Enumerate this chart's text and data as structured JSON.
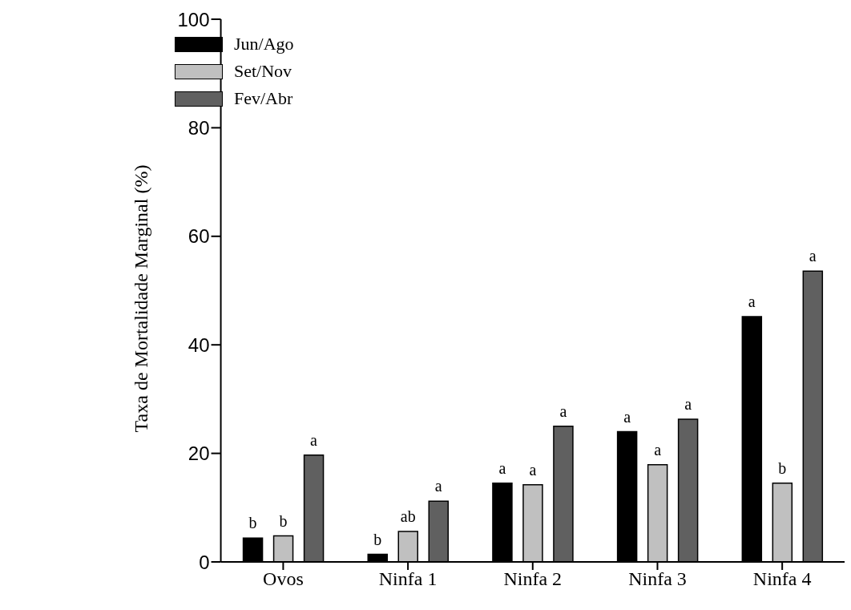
{
  "chart_data": {
    "type": "bar",
    "ylabel": "Taxa de Mortalidade Marginal (%)",
    "categories": [
      "Ovos",
      "Ninfa 1",
      "Ninfa 2",
      "Ninfa 3",
      "Ninfa 4"
    ],
    "series": [
      {
        "name": "Jun/Ago",
        "color": "#000000",
        "values": [
          4.4,
          1.4,
          14.5,
          24.0,
          45.2
        ],
        "value_labels": [
          "b",
          "b",
          "a",
          "a",
          "a"
        ]
      },
      {
        "name": "Set/Nov",
        "color": "#c0c0c0",
        "values": [
          4.8,
          5.6,
          14.2,
          17.9,
          14.5
        ],
        "value_labels": [
          "b",
          "ab",
          "a",
          "a",
          "b"
        ]
      },
      {
        "name": "Fev/Abr",
        "color": "#606060",
        "values": [
          19.7,
          11.2,
          25.0,
          26.3,
          53.6
        ],
        "value_labels": [
          "a",
          "a",
          "a",
          "a",
          "a"
        ]
      }
    ],
    "ylim": [
      0,
      100
    ],
    "yticks": [
      0,
      20,
      40,
      60,
      80,
      100
    ],
    "grid": false,
    "legend": "top left"
  }
}
